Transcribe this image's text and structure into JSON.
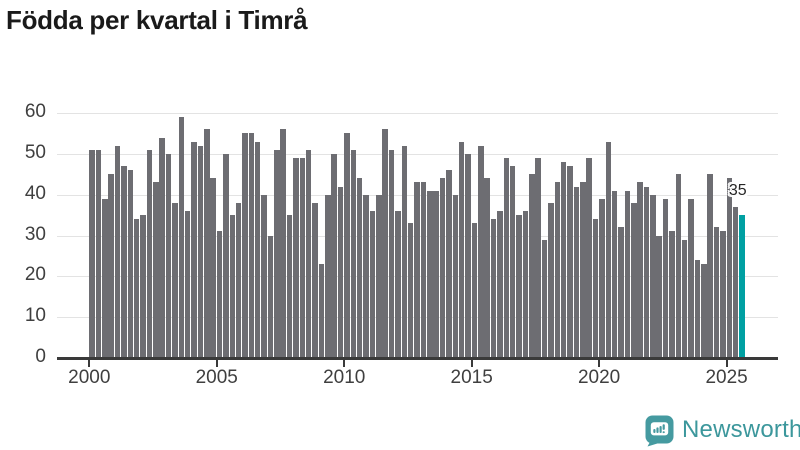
{
  "title": "Födda per kvartal i Timrå",
  "chart_data": {
    "type": "bar",
    "title": "Födda per kvartal i Timrå",
    "start_period": "2000Q1",
    "end_period": "2025Q3",
    "categories": [
      "2000Q1",
      "2000Q2",
      "2000Q3",
      "2000Q4",
      "2001Q1",
      "2001Q2",
      "2001Q3",
      "2001Q4",
      "2002Q1",
      "2002Q2",
      "2002Q3",
      "2002Q4",
      "2003Q1",
      "2003Q2",
      "2003Q3",
      "2003Q4",
      "2004Q1",
      "2004Q2",
      "2004Q3",
      "2004Q4",
      "2005Q1",
      "2005Q2",
      "2005Q3",
      "2005Q4",
      "2006Q1",
      "2006Q2",
      "2006Q3",
      "2006Q4",
      "2007Q1",
      "2007Q2",
      "2007Q3",
      "2007Q4",
      "2008Q1",
      "2008Q2",
      "2008Q3",
      "2008Q4",
      "2009Q1",
      "2009Q2",
      "2009Q3",
      "2009Q4",
      "2010Q1",
      "2010Q2",
      "2010Q3",
      "2010Q4",
      "2011Q1",
      "2011Q2",
      "2011Q3",
      "2011Q4",
      "2012Q1",
      "2012Q2",
      "2012Q3",
      "2012Q4",
      "2013Q1",
      "2013Q2",
      "2013Q3",
      "2013Q4",
      "2014Q1",
      "2014Q2",
      "2014Q3",
      "2014Q4",
      "2015Q1",
      "2015Q2",
      "2015Q3",
      "2015Q4",
      "2016Q1",
      "2016Q2",
      "2016Q3",
      "2016Q4",
      "2017Q1",
      "2017Q2",
      "2017Q3",
      "2017Q4",
      "2018Q1",
      "2018Q2",
      "2018Q3",
      "2018Q4",
      "2019Q1",
      "2019Q2",
      "2019Q3",
      "2019Q4",
      "2020Q1",
      "2020Q2",
      "2020Q3",
      "2020Q4",
      "2021Q1",
      "2021Q2",
      "2021Q3",
      "2021Q4",
      "2022Q1",
      "2022Q2",
      "2022Q3",
      "2022Q4",
      "2023Q1",
      "2023Q2",
      "2023Q3",
      "2023Q4",
      "2024Q1",
      "2024Q2",
      "2024Q3",
      "2024Q4",
      "2025Q1",
      "2025Q2",
      "2025Q3"
    ],
    "values": [
      51,
      51,
      39,
      45,
      52,
      47,
      46,
      34,
      35,
      51,
      43,
      54,
      50,
      38,
      59,
      36,
      53,
      52,
      56,
      44,
      31,
      50,
      35,
      38,
      55,
      55,
      53,
      40,
      30,
      51,
      56,
      35,
      49,
      49,
      51,
      38,
      23,
      40,
      50,
      42,
      55,
      51,
      44,
      40,
      36,
      40,
      56,
      51,
      36,
      52,
      33,
      43,
      43,
      41,
      41,
      44,
      46,
      40,
      53,
      50,
      33,
      52,
      44,
      34,
      36,
      49,
      47,
      35,
      36,
      45,
      49,
      29,
      38,
      43,
      48,
      47,
      42,
      43,
      49,
      34,
      39,
      53,
      41,
      32,
      41,
      38,
      43,
      42,
      40,
      30,
      39,
      31,
      45,
      29,
      39,
      24,
      23,
      45,
      32,
      31,
      44,
      37,
      35
    ],
    "highlight_index": 102,
    "highlight_value_label": "35",
    "y_ticks": [
      0,
      10,
      20,
      30,
      40,
      50,
      60
    ],
    "x_ticks": [
      {
        "label": "2000",
        "index": 0
      },
      {
        "label": "2005",
        "index": 20
      },
      {
        "label": "2010",
        "index": 40
      },
      {
        "label": "2015",
        "index": 60
      },
      {
        "label": "2020",
        "index": 80
      },
      {
        "label": "2025",
        "index": 100
      }
    ],
    "ylim": [
      0,
      60
    ],
    "grid": true,
    "legend": "none",
    "bar_color": "#6d6d72",
    "highlight_color": "#00a0a2"
  },
  "footer": {
    "brand": "Newsworthy",
    "logo_icon": "newsworthy-speech-bubble-chart-icon",
    "brand_color": "#3c979c"
  }
}
